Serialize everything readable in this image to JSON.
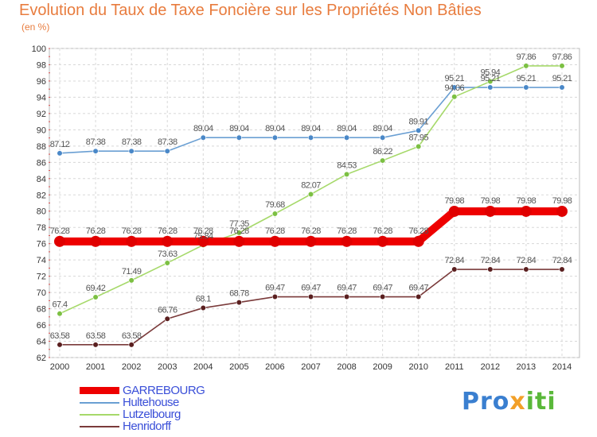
{
  "chart_data": {
    "type": "line",
    "title": "Evolution du Taux de Taxe Foncière sur les Propriétés Non Bâties",
    "subtitle": "(en %)",
    "xlabel": "",
    "ylabel": "(en %)",
    "x": [
      "2000",
      "2001",
      "2002",
      "2003",
      "2004",
      "2005",
      "2006",
      "2007",
      "2008",
      "2009",
      "2010",
      "2011",
      "2012",
      "2013",
      "2014"
    ],
    "ylim": [
      62,
      100
    ],
    "yticks": [
      62,
      64,
      66,
      68,
      70,
      72,
      74,
      76,
      78,
      80,
      82,
      84,
      86,
      88,
      90,
      92,
      94,
      96,
      98,
      100
    ],
    "grid": true,
    "legend_position": "bottom-left",
    "series": [
      {
        "name": "Hultehouse",
        "color": "#6a9fd3",
        "marker": "#4a88c8",
        "values": [
          87.12,
          87.38,
          87.38,
          87.38,
          89.04,
          89.04,
          89.04,
          89.04,
          89.04,
          89.04,
          89.91,
          95.21,
          95.21,
          95.21,
          95.21
        ],
        "labels": [
          "87.12",
          "87.38",
          "87.38",
          "87.38",
          "89.04",
          "89.04",
          "89.04",
          "89.04",
          "89.04",
          "89.04",
          "89.91",
          "95.21",
          "95.21",
          "95.21",
          "95.21"
        ]
      },
      {
        "name": "Lutzelbourg",
        "color": "#a6d96a",
        "marker": "#7cc043",
        "values": [
          67.4,
          69.42,
          71.49,
          73.63,
          75.84,
          77.35,
          79.68,
          82.07,
          84.53,
          86.22,
          87.95,
          94.06,
          95.94,
          97.86,
          97.86
        ],
        "labels": [
          "67.4",
          "69.42",
          "71.49",
          "73.63",
          "75.84",
          "77.35",
          "79.68",
          "82.07",
          "84.53",
          "86.22",
          "87.95",
          "94.06",
          "95.94",
          "97.86",
          "97.86"
        ]
      },
      {
        "name": "Henridorff",
        "color": "#7a3a3a",
        "marker": "#5a1f1f",
        "values": [
          63.58,
          63.58,
          63.58,
          66.76,
          68.1,
          68.78,
          69.47,
          69.47,
          69.47,
          69.47,
          69.47,
          72.84,
          72.84,
          72.84,
          72.84
        ],
        "labels": [
          "63.58",
          "63.58",
          "63.58",
          "66.76",
          "68.1",
          "68.78",
          "69.47",
          "69.47",
          "69.47",
          "69.47",
          "69.47",
          "72.84",
          "72.84",
          "72.84",
          "72.84"
        ]
      },
      {
        "name": "GARREBOURG",
        "color": "#ee0000",
        "marker": "#e00000",
        "bold": true,
        "values": [
          76.28,
          76.28,
          76.28,
          76.28,
          76.28,
          76.28,
          76.28,
          76.28,
          76.28,
          76.28,
          76.28,
          79.98,
          79.98,
          79.98,
          79.98
        ],
        "labels": [
          "76.28",
          "76.28",
          "76.28",
          "76.28",
          "76.28",
          "76.28",
          "76.28",
          "76.28",
          "76.28",
          "76.28",
          "76.28",
          "79.98",
          "79.98",
          "79.98",
          "79.98"
        ]
      }
    ]
  },
  "legend": {
    "items": [
      {
        "label": "GARREBOURG",
        "color": "#ee0000"
      },
      {
        "label": "Hultehouse",
        "color": "#6a9fd3"
      },
      {
        "label": "Lutzelbourg",
        "color": "#a6d96a"
      },
      {
        "label": "Henridorff",
        "color": "#7a3a3a"
      }
    ]
  },
  "logo": {
    "p1": "Pro",
    "p2": "x",
    "p3": "iti"
  }
}
